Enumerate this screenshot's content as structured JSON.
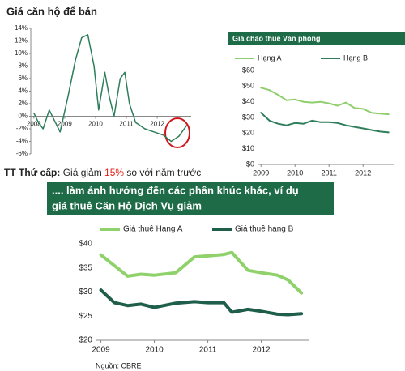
{
  "chart_data": [
    {
      "type": "line",
      "title": "Giá căn hộ để bán",
      "x": [
        2008,
        2008.15,
        2008.3,
        2008.5,
        2008.7,
        2008.85,
        2009.1,
        2009.35,
        2009.55,
        2009.75,
        2009.95,
        2010.1,
        2010.3,
        2010.45,
        2010.6,
        2010.8,
        2010.95,
        2011.1,
        2011.3,
        2011.6,
        2011.9,
        2012.2,
        2012.45,
        2012.7,
        2012.95
      ],
      "series": [
        {
          "color": "#2e7d5b",
          "values": [
            0.5,
            -1,
            -2,
            1,
            -1,
            -2.5,
            3,
            9,
            12.5,
            13,
            8,
            1,
            7,
            3,
            0,
            6,
            7,
            2,
            -1,
            -2,
            -2.5,
            -3,
            -4,
            -3.2,
            -1.5
          ]
        }
      ],
      "xlim": [
        2007.9,
        2013.1
      ],
      "xticks": [
        2008,
        2009,
        2010,
        2011,
        2012
      ],
      "ylim": [
        -6,
        14
      ],
      "yticks": [
        {
          "value": 14,
          "label": "14%"
        },
        {
          "value": 12,
          "label": "12%"
        },
        {
          "value": 10,
          "label": "10%"
        },
        {
          "value": 8,
          "label": "8%"
        },
        {
          "value": 6,
          "label": "6%"
        },
        {
          "value": 4,
          "label": "4%"
        },
        {
          "value": 2,
          "label": "2%"
        },
        {
          "value": 0,
          "label": "0%"
        },
        {
          "value": -2,
          "label": "-2%"
        },
        {
          "value": -4,
          "label": "-4%"
        },
        {
          "value": -6,
          "label": "-6%"
        }
      ],
      "grid": false
    },
    {
      "type": "line",
      "title": "Giá chào thuê Văn phòng",
      "x": [
        2009,
        2009.25,
        2009.5,
        2009.75,
        2010,
        2010.25,
        2010.5,
        2010.75,
        2011,
        2011.25,
        2011.5,
        2011.75,
        2012,
        2012.25,
        2012.5,
        2012.75
      ],
      "series": [
        {
          "name": "Hạng A",
          "color": "#8fce6d",
          "values": [
            49,
            47.5,
            44.5,
            41,
            41.5,
            40,
            39.5,
            40,
            39,
            37.5,
            39.5,
            36,
            35.5,
            33,
            32.5,
            32
          ]
        },
        {
          "name": "Hạng B",
          "color": "#2e7d5b",
          "values": [
            33,
            28,
            26,
            25,
            26.5,
            26,
            28,
            27,
            27,
            26.5,
            25,
            24,
            23,
            22,
            21,
            20.5
          ]
        }
      ],
      "xlim": [
        2008.9,
        2012.9
      ],
      "xticks": [
        2009,
        2010,
        2011,
        2012
      ],
      "ylim": [
        0,
        60
      ],
      "yticks": [
        {
          "value": 60,
          "label": "$60"
        },
        {
          "value": 50,
          "label": "$50"
        },
        {
          "value": 40,
          "label": "$40"
        },
        {
          "value": 30,
          "label": "$30"
        },
        {
          "value": 20,
          "label": "$20"
        },
        {
          "value": 10,
          "label": "$10"
        },
        {
          "value": 0,
          "label": "$0"
        }
      ],
      "grid": false,
      "legend": "top"
    },
    {
      "type": "line",
      "x": [
        2009,
        2009.25,
        2009.5,
        2009.75,
        2010,
        2010.4,
        2010.75,
        2011,
        2011.3,
        2011.45,
        2011.75,
        2012,
        2012.3,
        2012.5,
        2012.75
      ],
      "series": [
        {
          "name": "Giá thuê Hạng A",
          "color": "#8fd16a",
          "values": [
            37.7,
            35.5,
            33.3,
            33.7,
            33.5,
            34,
            37.3,
            37.5,
            37.8,
            38.2,
            34.5,
            34,
            33.5,
            32.5,
            29.8
          ]
        },
        {
          "name": "Giá thuê hạng B",
          "color": "#1f5e4a",
          "values": [
            30.4,
            27.8,
            27.2,
            27.5,
            26.8,
            27.7,
            28,
            27.8,
            27.8,
            25.8,
            26.4,
            26,
            25.4,
            25.3,
            25.5
          ]
        }
      ],
      "xlim": [
        2008.9,
        2012.9
      ],
      "xticks": [
        2009,
        2010,
        2011,
        2012
      ],
      "ylim": [
        20,
        40
      ],
      "yticks": [
        {
          "value": 40,
          "label": "$40"
        },
        {
          "value": 35,
          "label": "$35"
        },
        {
          "value": 30,
          "label": "$30"
        },
        {
          "value": 25,
          "label": "$25"
        },
        {
          "value": 20,
          "label": "$20"
        }
      ],
      "grid": false,
      "legend": "top"
    }
  ],
  "note": {
    "label": "TT Thứ cấp:",
    "text_before": " Giá giảm ",
    "highlight": "15%",
    "text_after": " so với năm trước"
  },
  "banner": {
    "lines": [
      ".... làm ảnh hưởng đến các phân khúc khác, ví dụ",
      "giá thuê Căn Hộ Dịch Vụ giảm"
    ]
  },
  "source": "Nguồn: CBRE"
}
